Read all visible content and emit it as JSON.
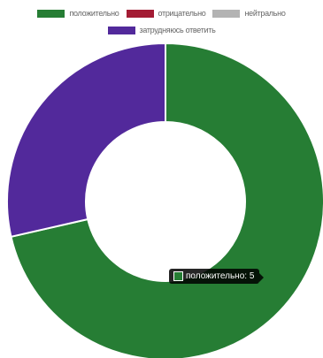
{
  "chart_data": {
    "type": "pie",
    "variant": "doughnut",
    "categories": [
      "положительно",
      "отрицательно",
      "нейтрально",
      "затрудняюсь ответить"
    ],
    "values": [
      5,
      0,
      0,
      2
    ],
    "colors": [
      "#267d34",
      "#a31c34",
      "#b3b3b3",
      "#52299b"
    ],
    "legend_position": "top",
    "tooltip": {
      "label": "положительно",
      "value": 5,
      "color": "#267d34"
    }
  }
}
